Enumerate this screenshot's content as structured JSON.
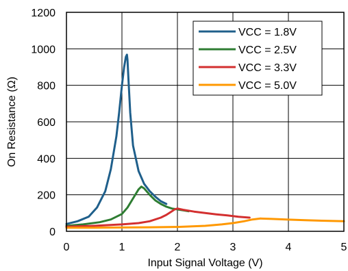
{
  "chart_data": {
    "type": "line",
    "title": "",
    "xlabel": "Input Signal Voltage (V)",
    "ylabel": "On Resistance (Ω)",
    "xlim": [
      0,
      5
    ],
    "ylim": [
      0,
      1200
    ],
    "xticks": [
      0,
      1,
      2,
      3,
      4,
      5
    ],
    "yticks": [
      0,
      200,
      400,
      600,
      800,
      1000,
      1200
    ],
    "grid": true,
    "legend_position": "top-right",
    "series": [
      {
        "name": "VCC = 1.8V",
        "color": "#1f5f8b",
        "x": [
          0,
          0.2,
          0.4,
          0.55,
          0.7,
          0.8,
          0.9,
          0.95,
          1.0,
          1.04,
          1.07,
          1.09,
          1.1,
          1.12,
          1.15,
          1.2,
          1.3,
          1.4,
          1.5,
          1.6,
          1.7,
          1.8
        ],
        "y": [
          40,
          55,
          80,
          130,
          220,
          340,
          520,
          650,
          800,
          900,
          955,
          968,
          940,
          820,
          650,
          470,
          330,
          260,
          220,
          190,
          165,
          150
        ]
      },
      {
        "name": "VCC = 2.5V",
        "color": "#2e7d32",
        "x": [
          0,
          0.3,
          0.6,
          0.8,
          1.0,
          1.1,
          1.2,
          1.3,
          1.35,
          1.4,
          1.5,
          1.6,
          1.7,
          1.8,
          1.9,
          2.0,
          2.1,
          2.2
        ],
        "y": [
          30,
          38,
          50,
          65,
          95,
          130,
          180,
          230,
          245,
          235,
          200,
          170,
          150,
          135,
          125,
          120,
          115,
          110
        ]
      },
      {
        "name": "VCC = 3.3V",
        "color": "#d32f2f",
        "x": [
          0,
          0.5,
          1.0,
          1.3,
          1.5,
          1.7,
          1.8,
          1.9,
          1.95,
          2.0,
          2.1,
          2.3,
          2.5,
          2.7,
          2.9,
          3.1,
          3.3
        ],
        "y": [
          25,
          30,
          38,
          45,
          55,
          75,
          90,
          110,
          120,
          125,
          118,
          108,
          100,
          93,
          87,
          80,
          75
        ]
      },
      {
        "name": "VCC = 5.0V",
        "color": "#ff9800",
        "x": [
          0,
          0.5,
          1.0,
          1.5,
          2.0,
          2.5,
          2.8,
          3.0,
          3.2,
          3.35,
          3.5,
          3.7,
          4.0,
          4.3,
          4.6,
          5.0
        ],
        "y": [
          20,
          20,
          21,
          22,
          24,
          30,
          38,
          45,
          55,
          65,
          70,
          68,
          64,
          61,
          58,
          55
        ]
      }
    ]
  }
}
